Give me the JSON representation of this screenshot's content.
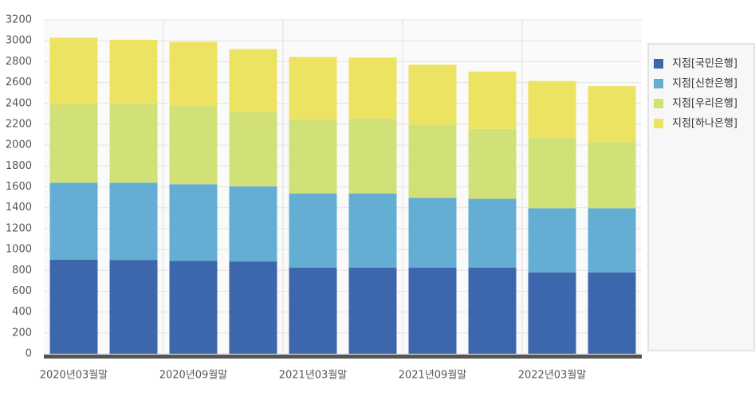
{
  "chart_data": {
    "type": "stacked_bar",
    "categories": [
      "2020년03월말",
      null,
      "2020년09월말",
      null,
      "2021년03월말",
      null,
      "2021년09월말",
      null,
      "2022년03월말",
      null
    ],
    "series": [
      {
        "name": "지점[국민은행]",
        "color": "#3d67ad",
        "values": [
          903,
          900,
          890,
          885,
          825,
          825,
          825,
          825,
          780,
          780
        ]
      },
      {
        "name": "지점[신한은행]",
        "color": "#64aed3",
        "values": [
          737,
          740,
          735,
          720,
          710,
          710,
          670,
          660,
          615,
          615
        ]
      },
      {
        "name": "지점[우리은행]",
        "color": "#d1e077",
        "values": [
          750,
          755,
          750,
          710,
          715,
          720,
          700,
          670,
          675,
          635
        ]
      },
      {
        "name": "지점[하나은행]",
        "color": "#ede362",
        "values": [
          640,
          615,
          615,
          605,
          595,
          585,
          575,
          550,
          545,
          535
        ]
      }
    ],
    "ylim": [
      0,
      3200
    ],
    "yticks": [
      0,
      200,
      400,
      600,
      800,
      1000,
      1200,
      1400,
      1600,
      1800,
      2000,
      2200,
      2400,
      2600,
      2800,
      3000,
      3200
    ],
    "grid": true,
    "legend": "right"
  }
}
